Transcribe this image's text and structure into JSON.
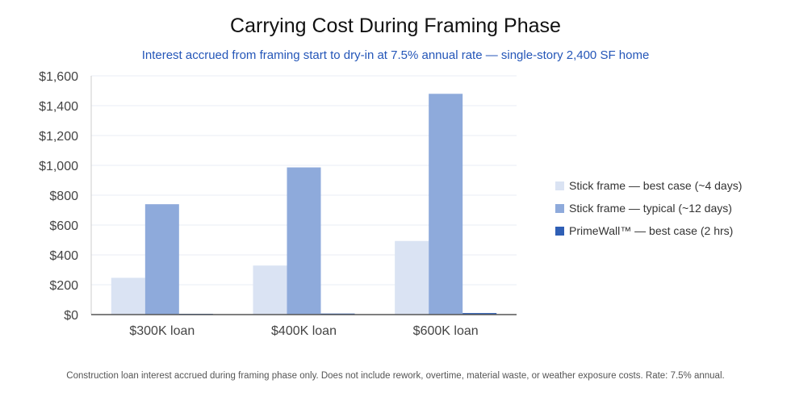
{
  "chart_data": {
    "type": "bar",
    "title": "Carrying Cost During Framing Phase",
    "subtitle": "Interest accrued from framing start to dry-in at 7.5% annual rate — single-story 2,400 SF home",
    "categories": [
      "$300K loan",
      "$400K loan",
      "$600K loan"
    ],
    "series": [
      {
        "name": "Stick frame — best case (~4 days)",
        "values": [
          246.6,
          328.8,
          493.2
        ],
        "color": "#dae3f3"
      },
      {
        "name": "Stick frame — typical (~12 days)",
        "values": [
          739.7,
          986.3,
          1479.5
        ],
        "color": "#8eaadb"
      },
      {
        "name": "PrimeWall™ — best case (2 hrs)",
        "values": [
          5.1,
          6.8,
          10.3
        ],
        "color": "#2f5fb5"
      }
    ],
    "ylim": [
      0,
      1600
    ],
    "yticks": [
      "$0",
      "$200",
      "$400",
      "$600",
      "$800",
      "$1,000",
      "$1,200",
      "$1,400",
      "$1,600"
    ],
    "grid": true,
    "legend_position": "right",
    "footnote": "Construction loan interest accrued during framing phase only. Does not include rework, overtime, material waste, or weather exposure costs. Rate: 7.5% annual."
  }
}
